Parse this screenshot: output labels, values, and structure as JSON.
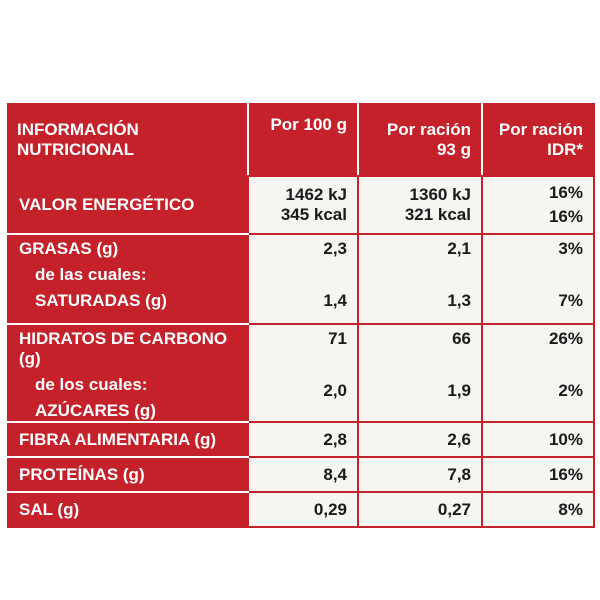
{
  "header": {
    "title_line1": "INFORMACIÓN",
    "title_line2": "NUTRICIONAL",
    "col1_line1": "Por 100 g",
    "col2_line1": "Por ración",
    "col2_line2": "93 g",
    "col3_line1": "Por ración",
    "col3_line2": "IDR*"
  },
  "rows": {
    "energia": {
      "label": "VALOR ENERGÉTICO",
      "per100_kj": "1462 kJ",
      "per100_kcal": "345 kcal",
      "racion_kj": "1360 kJ",
      "racion_kcal": "321 kcal",
      "idr_kj": "16%",
      "idr_kcal": "16%"
    },
    "grasas": {
      "label": "GRASAS (g)",
      "sub1": "de las cuales:",
      "sub2": "SATURADAS (g)",
      "per100": "2,3",
      "per100_sat": "1,4",
      "racion": "2,1",
      "racion_sat": "1,3",
      "idr": "3%",
      "idr_sat": "7%"
    },
    "hidratos": {
      "label": "HIDRATOS DE CARBONO (g)",
      "sub1": "de los cuales:",
      "sub2": "AZÚCARES (g)",
      "per100": "71",
      "per100_az": "2,0",
      "racion": "66",
      "racion_az": "1,9",
      "idr": "26%",
      "idr_az": "2%"
    },
    "fibra": {
      "label": "FIBRA ALIMENTARIA (g)",
      "per100": "2,8",
      "racion": "2,6",
      "idr": "10%"
    },
    "proteinas": {
      "label": "PROTEÍNAS (g)",
      "per100": "8,4",
      "racion": "7,8",
      "idr": "16%"
    },
    "sal": {
      "label": "SAL (g)",
      "per100": "0,29",
      "racion": "0,27",
      "idr": "8%"
    }
  },
  "colors": {
    "brand_red": "#c4212a",
    "cell_bg": "#f7f5f2"
  }
}
